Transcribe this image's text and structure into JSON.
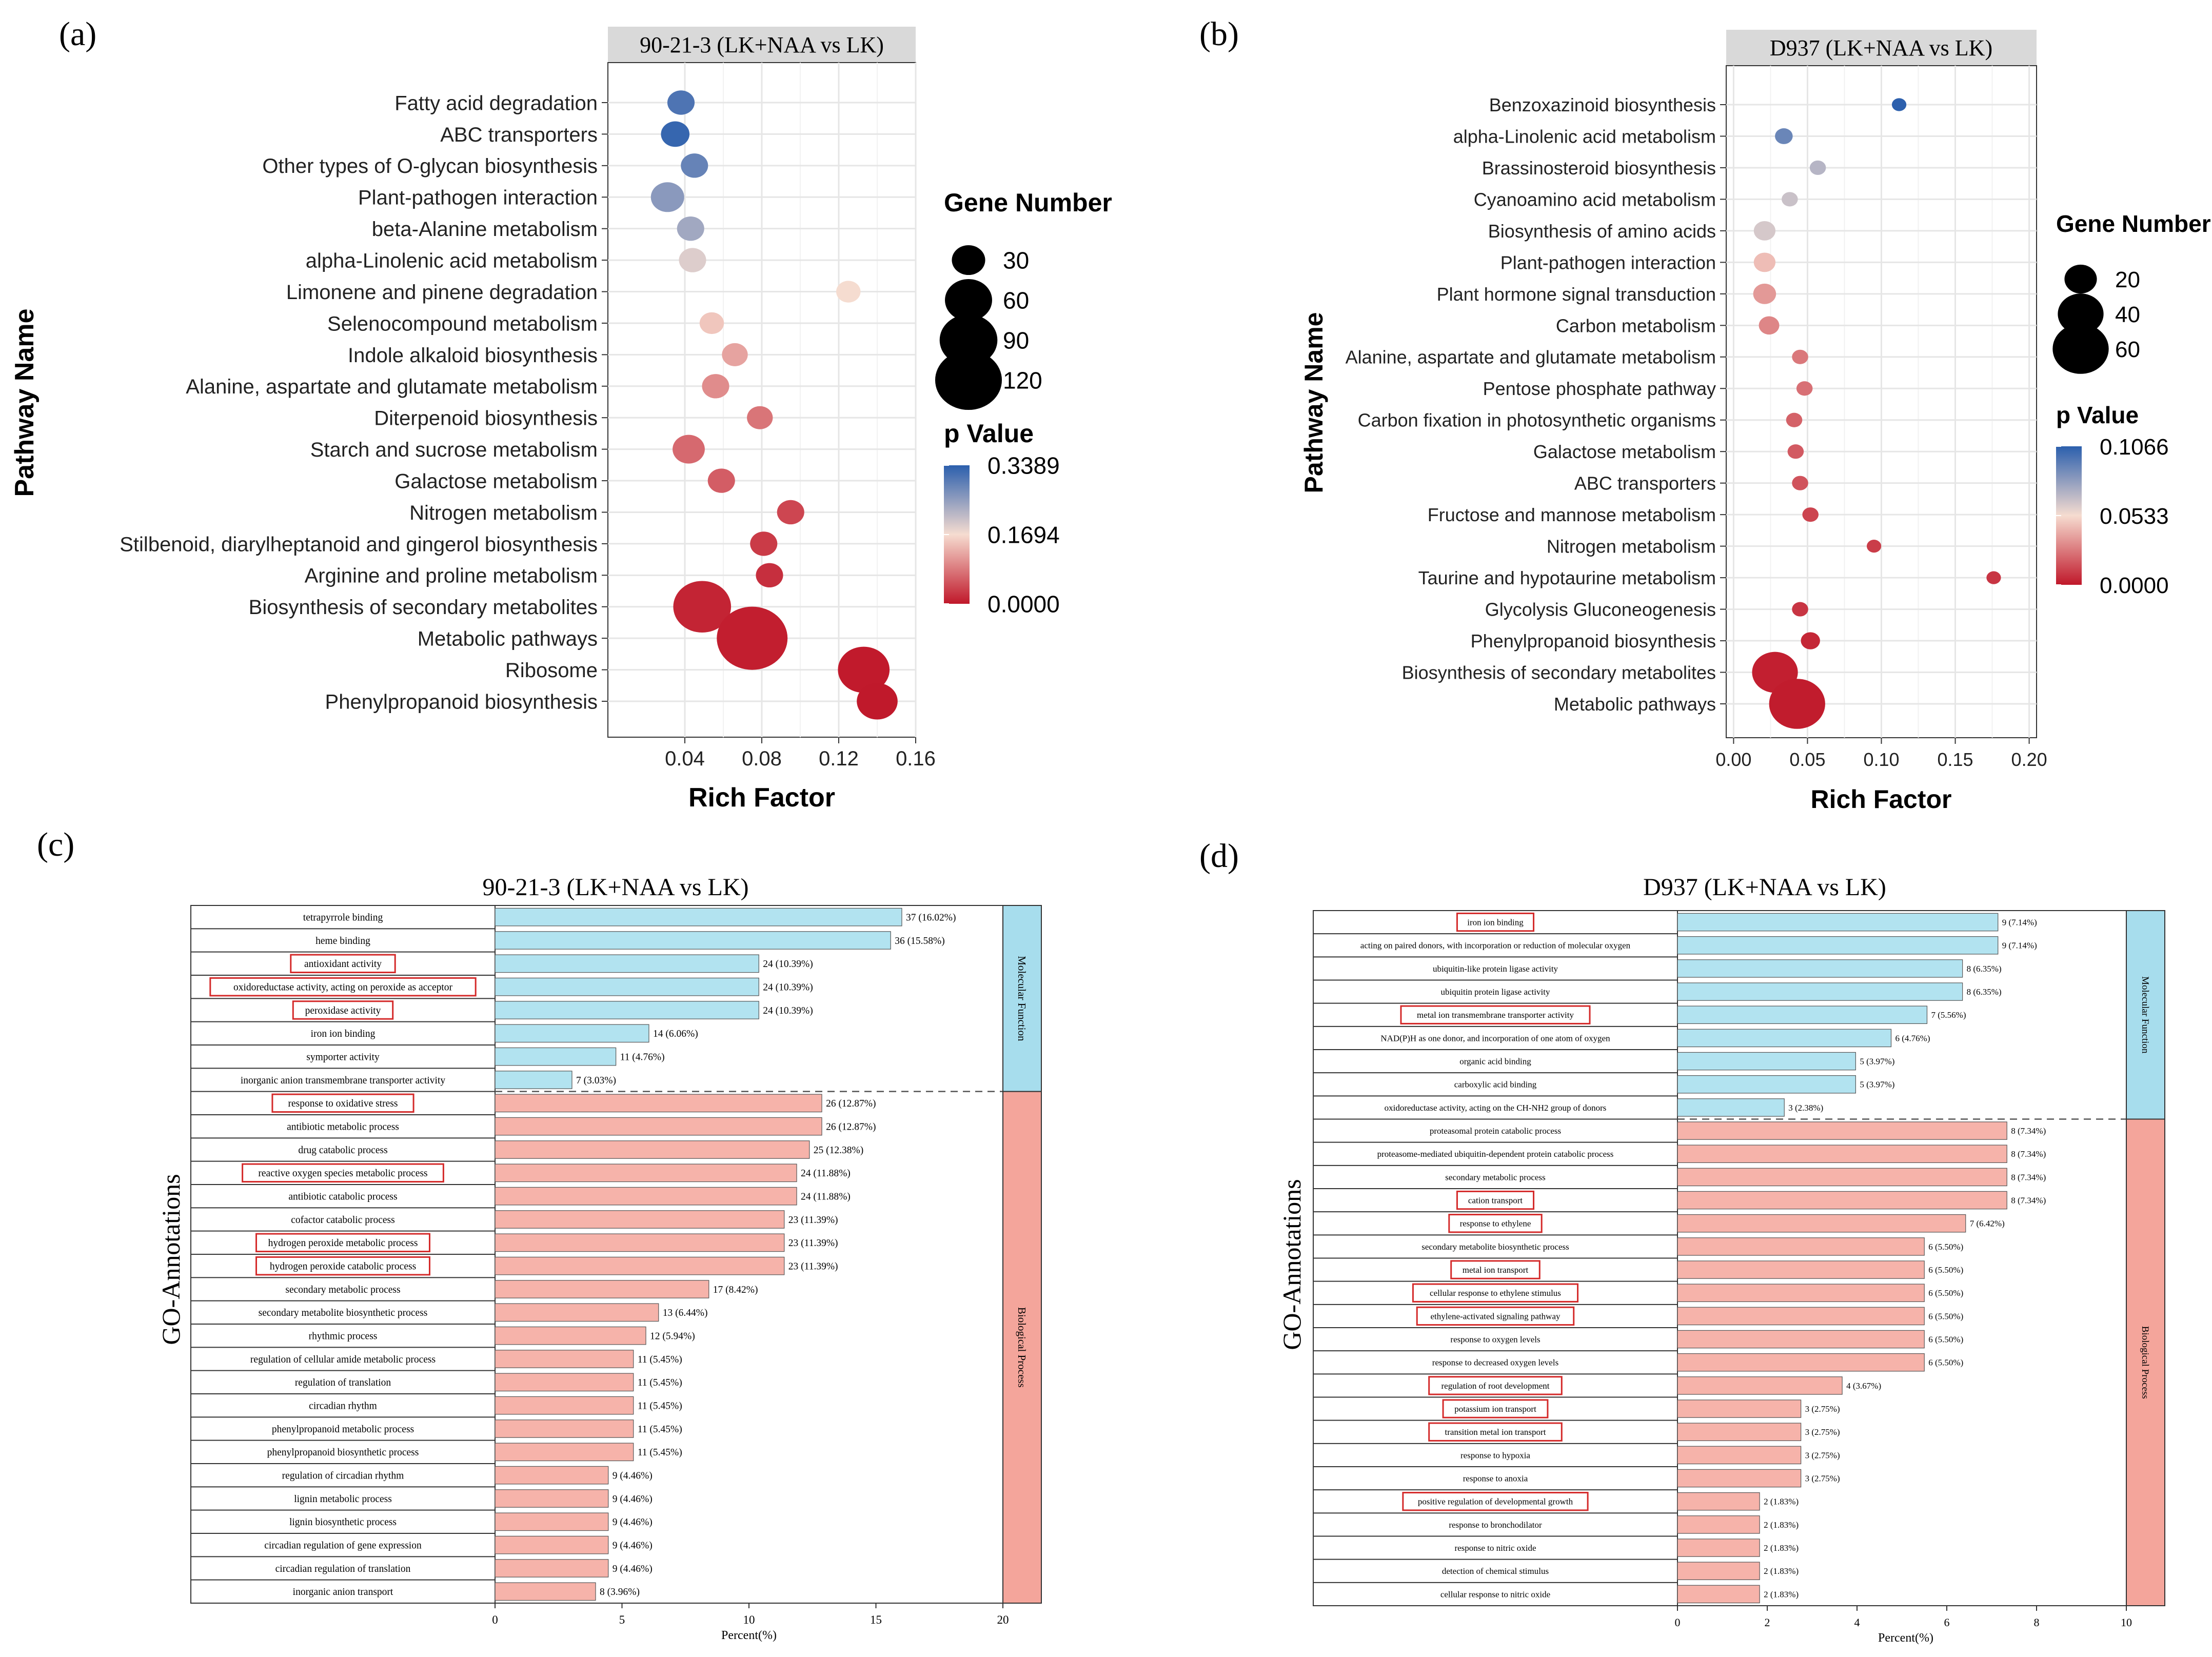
{
  "chart_data": [
    {
      "panel": "(a)",
      "type": "scatter",
      "title": "90-21-3 (LK+NAA vs LK)",
      "xlabel": "Rich Factor",
      "ylabel": "Pathway Name",
      "xlim": [
        0.0,
        0.16
      ],
      "xticks": [
        0.04,
        0.08,
        0.12,
        0.16
      ],
      "xticklabels": [
        "0.04",
        "0.08",
        "0.12",
        "0.16"
      ],
      "size_legend": {
        "title": "Gene Number",
        "values": [
          30,
          60,
          90,
          120
        ],
        "labels": [
          "30",
          "60",
          "90",
          "120"
        ]
      },
      "color_legend": {
        "title": "p Value",
        "max": 0.3389,
        "labels": [
          "0.3389",
          "0.1694",
          "0.0000"
        ]
      },
      "points": [
        {
          "pathway": "Fatty acid degradation",
          "rich_factor": 0.038,
          "genes": 20,
          "p": 0.31
        },
        {
          "pathway": "ABC transporters",
          "rich_factor": 0.035,
          "genes": 22,
          "p": 0.33
        },
        {
          "pathway": "Other types of O-glycan biosynthesis",
          "rich_factor": 0.045,
          "genes": 20,
          "p": 0.29
        },
        {
          "pathway": "Plant-pathogen interaction",
          "rich_factor": 0.031,
          "genes": 30,
          "p": 0.26
        },
        {
          "pathway": "beta-Alanine metabolism",
          "rich_factor": 0.043,
          "genes": 20,
          "p": 0.24
        },
        {
          "pathway": "alpha-Linolenic acid metabolism",
          "rich_factor": 0.044,
          "genes": 20,
          "p": 0.19
        },
        {
          "pathway": "Limonene and pinene degradation",
          "rich_factor": 0.125,
          "genes": 16,
          "p": 0.17
        },
        {
          "pathway": "Selenocompound metabolism",
          "rich_factor": 0.054,
          "genes": 16,
          "p": 0.15
        },
        {
          "pathway": "Indole alkaloid biosynthesis",
          "rich_factor": 0.066,
          "genes": 18,
          "p": 0.12
        },
        {
          "pathway": "Alanine, aspartate and glutamate metabolism",
          "rich_factor": 0.056,
          "genes": 20,
          "p": 0.1
        },
        {
          "pathway": "Diterpenoid biosynthesis",
          "rich_factor": 0.079,
          "genes": 18,
          "p": 0.08
        },
        {
          "pathway": "Starch and sucrose metabolism",
          "rich_factor": 0.042,
          "genes": 28,
          "p": 0.07
        },
        {
          "pathway": "Galactose metabolism",
          "rich_factor": 0.059,
          "genes": 20,
          "p": 0.06
        },
        {
          "pathway": "Nitrogen metabolism",
          "rich_factor": 0.095,
          "genes": 20,
          "p": 0.04
        },
        {
          "pathway": "Stilbenoid, diarylheptanoid and gingerol biosynthesis",
          "rich_factor": 0.081,
          "genes": 20,
          "p": 0.03
        },
        {
          "pathway": "Arginine and proline metabolism",
          "rich_factor": 0.084,
          "genes": 20,
          "p": 0.02
        },
        {
          "pathway": "Biosynthesis of secondary metabolites",
          "rich_factor": 0.049,
          "genes": 90,
          "p": 0.01
        },
        {
          "pathway": "Metabolic pathways",
          "rich_factor": 0.075,
          "genes": 135,
          "p": 0.005
        },
        {
          "pathway": "Ribosome",
          "rich_factor": 0.133,
          "genes": 72,
          "p": 0.002
        },
        {
          "pathway": "Phenylpropanoid biosynthesis",
          "rich_factor": 0.14,
          "genes": 45,
          "p": 0.001
        }
      ]
    },
    {
      "panel": "(b)",
      "type": "scatter",
      "title": "D937 (LK+NAA vs LK)",
      "xlabel": "Rich Factor",
      "ylabel": "Pathway Name",
      "xlim": [
        -0.005,
        0.205
      ],
      "xticks": [
        0.0,
        0.05,
        0.1,
        0.15,
        0.2
      ],
      "xticklabels": [
        "0.00",
        "0.05",
        "0.10",
        "0.15",
        "0.20"
      ],
      "size_legend": {
        "title": "Gene Number",
        "values": [
          20,
          40,
          60
        ],
        "labels": [
          "20",
          "40",
          "60"
        ]
      },
      "color_legend": {
        "title": "p Value",
        "max": 0.1066,
        "labels": [
          "0.1066",
          "0.0533",
          "0.0000"
        ]
      },
      "points": [
        {
          "pathway": "Benzoxazinoid biosynthesis",
          "rich_factor": 0.112,
          "genes": 4,
          "p": 0.106
        },
        {
          "pathway": "alpha-Linolenic acid metabolism",
          "rich_factor": 0.034,
          "genes": 6,
          "p": 0.09
        },
        {
          "pathway": "Brassinosteroid biosynthesis",
          "rich_factor": 0.057,
          "genes": 5,
          "p": 0.07
        },
        {
          "pathway": "Cyanoamino acid metabolism",
          "rich_factor": 0.038,
          "genes": 5,
          "p": 0.065
        },
        {
          "pathway": "Biosynthesis of amino acids",
          "rich_factor": 0.021,
          "genes": 9,
          "p": 0.062
        },
        {
          "pathway": "Plant-pathogen interaction",
          "rich_factor": 0.021,
          "genes": 9,
          "p": 0.045
        },
        {
          "pathway": "Plant hormone signal transduction",
          "rich_factor": 0.021,
          "genes": 10,
          "p": 0.035
        },
        {
          "pathway": "Carbon metabolism",
          "rich_factor": 0.024,
          "genes": 8,
          "p": 0.03
        },
        {
          "pathway": "Alanine, aspartate and glutamate metabolism",
          "rich_factor": 0.045,
          "genes": 5,
          "p": 0.026
        },
        {
          "pathway": "Pentose phosphate pathway",
          "rich_factor": 0.048,
          "genes": 5,
          "p": 0.024
        },
        {
          "pathway": "Carbon fixation in photosynthetic organisms",
          "rich_factor": 0.041,
          "genes": 5,
          "p": 0.02
        },
        {
          "pathway": "Galactose metabolism",
          "rich_factor": 0.042,
          "genes": 5,
          "p": 0.018
        },
        {
          "pathway": "ABC transporters",
          "rich_factor": 0.045,
          "genes": 5,
          "p": 0.016
        },
        {
          "pathway": "Fructose and mannose metabolism",
          "rich_factor": 0.052,
          "genes": 5,
          "p": 0.012
        },
        {
          "pathway": "Nitrogen metabolism",
          "rich_factor": 0.095,
          "genes": 4,
          "p": 0.01
        },
        {
          "pathway": "Taurine and hypotaurine metabolism",
          "rich_factor": 0.176,
          "genes": 4,
          "p": 0.008
        },
        {
          "pathway": "Glycolysis  Gluconeogenesis",
          "rich_factor": 0.045,
          "genes": 5,
          "p": 0.008
        },
        {
          "pathway": "Phenylpropanoid biosynthesis",
          "rich_factor": 0.052,
          "genes": 7,
          "p": 0.004
        },
        {
          "pathway": "Biosynthesis of secondary metabolites",
          "rich_factor": 0.028,
          "genes": 40,
          "p": 0.002
        },
        {
          "pathway": "Metabolic pathways",
          "rich_factor": 0.043,
          "genes": 60,
          "p": 0.001
        }
      ]
    },
    {
      "panel": "(c)",
      "type": "bar",
      "orientation": "horizontal",
      "title": "90-21-3 (LK+NAA vs LK)",
      "xlabel": "Percent(%)",
      "ylabel": "GO-Annotations",
      "xlim": [
        0,
        20
      ],
      "xticks": [
        0,
        5,
        10,
        15,
        20
      ],
      "xticklabels": [
        "0",
        "5",
        "10",
        "15",
        "20"
      ],
      "groups": [
        {
          "name": "Molecular Function",
          "color": "#b2e3f0",
          "terms": [
            "tetrapyrrole binding",
            "heme binding",
            "antioxidant activity",
            "oxidoreductase activity, acting on peroxide as acceptor",
            "peroxidase activity",
            "iron ion binding",
            "symporter activity",
            "inorganic anion transmembrane transporter activity"
          ],
          "values": [
            16.02,
            15.58,
            10.39,
            10.39,
            10.39,
            6.06,
            4.76,
            3.03
          ],
          "labels": [
            "37 (16.02%)",
            "36 (15.58%)",
            "24 (10.39%)",
            "24 (10.39%)",
            "24 (10.39%)",
            "14 (6.06%)",
            "11 (4.76%)",
            "7 (3.03%)"
          ],
          "boxed": [
            false,
            false,
            true,
            true,
            true,
            false,
            false,
            false
          ]
        },
        {
          "name": "Biological Process",
          "color": "#f6b3aa",
          "terms": [
            "response to oxidative stress",
            "antibiotic metabolic process",
            "drug catabolic process",
            "reactive oxygen species metabolic process",
            "antibiotic catabolic process",
            "cofactor catabolic process",
            "hydrogen peroxide metabolic process",
            "hydrogen peroxide catabolic process",
            "secondary metabolic process",
            "secondary metabolite biosynthetic process",
            "rhythmic process",
            "regulation of cellular amide metabolic process",
            "regulation of translation",
            "circadian rhythm",
            "phenylpropanoid metabolic process",
            "phenylpropanoid biosynthetic process",
            "regulation of circadian rhythm",
            "lignin metabolic process",
            "lignin biosynthetic process",
            "circadian regulation of gene expression",
            "circadian regulation of translation",
            "inorganic anion transport"
          ],
          "values": [
            12.87,
            12.87,
            12.38,
            11.88,
            11.88,
            11.39,
            11.39,
            11.39,
            8.42,
            6.44,
            5.94,
            5.45,
            5.45,
            5.45,
            5.45,
            5.45,
            4.46,
            4.46,
            4.46,
            4.46,
            4.46,
            3.96
          ],
          "labels": [
            "26 (12.87%)",
            "26 (12.87%)",
            "25 (12.38%)",
            "24 (11.88%)",
            "24 (11.88%)",
            "23 (11.39%)",
            "23 (11.39%)",
            "23 (11.39%)",
            "17 (8.42%)",
            "13 (6.44%)",
            "12 (5.94%)",
            "11 (5.45%)",
            "11 (5.45%)",
            "11 (5.45%)",
            "11 (5.45%)",
            "11 (5.45%)",
            "9 (4.46%)",
            "9 (4.46%)",
            "9 (4.46%)",
            "9 (4.46%)",
            "9 (4.46%)",
            "8 (3.96%)"
          ],
          "boxed": [
            true,
            false,
            false,
            true,
            false,
            false,
            true,
            true,
            false,
            false,
            false,
            false,
            false,
            false,
            false,
            false,
            false,
            false,
            false,
            false,
            false,
            false
          ]
        }
      ]
    },
    {
      "panel": "(d)",
      "type": "bar",
      "orientation": "horizontal",
      "title": "D937 (LK+NAA vs LK)",
      "xlabel": "Percent(%)",
      "ylabel": "GO-Annotations",
      "xlim": [
        0,
        10
      ],
      "xticks": [
        0,
        2,
        4,
        6,
        8,
        10
      ],
      "xticklabels": [
        "0",
        "2",
        "4",
        "6",
        "8",
        "10"
      ],
      "groups": [
        {
          "name": "Molecular Function",
          "color": "#b2e3f0",
          "terms": [
            "iron ion binding",
            "acting on paired donors, with incorporation or reduction of molecular oxygen",
            "ubiquitin-like protein ligase activity",
            "ubiquitin protein ligase activity",
            "metal ion transmembrane transporter activity",
            "NAD(P)H as one donor, and incorporation of one atom of oxygen",
            "organic acid binding",
            "carboxylic acid binding",
            "oxidoreductase activity, acting on the CH-NH2 group of donors"
          ],
          "values": [
            7.14,
            7.14,
            6.35,
            6.35,
            5.56,
            4.76,
            3.97,
            3.97,
            2.38
          ],
          "labels": [
            "9 (7.14%)",
            "9 (7.14%)",
            "8 (6.35%)",
            "8 (6.35%)",
            "7 (5.56%)",
            "6 (4.76%)",
            "5 (3.97%)",
            "5 (3.97%)",
            "3 (2.38%)"
          ],
          "boxed": [
            true,
            false,
            false,
            false,
            true,
            false,
            false,
            false,
            false
          ]
        },
        {
          "name": "Biological Process",
          "color": "#f6b3aa",
          "terms": [
            "proteasomal protein catabolic process",
            "proteasome-mediated ubiquitin-dependent protein catabolic process",
            "secondary metabolic process",
            "cation transport",
            "response to ethylene",
            "secondary metabolite biosynthetic process",
            "metal ion transport",
            "cellular response to ethylene stimulus",
            "ethylene-activated signaling pathway",
            "response to oxygen levels",
            "response to decreased oxygen levels",
            "regulation of root development",
            "potassium ion transport",
            "transition metal ion transport",
            "response to hypoxia",
            "response to anoxia",
            "positive regulation of developmental growth",
            "response to bronchodilator",
            "response to nitric oxide",
            "detection of chemical stimulus",
            "cellular response to nitric oxide"
          ],
          "values": [
            7.34,
            7.34,
            7.34,
            7.34,
            6.42,
            5.5,
            5.5,
            5.5,
            5.5,
            5.5,
            5.5,
            3.67,
            2.75,
            2.75,
            2.75,
            2.75,
            1.83,
            1.83,
            1.83,
            1.83,
            1.83
          ],
          "labels": [
            "8 (7.34%)",
            "8 (7.34%)",
            "8 (7.34%)",
            "8 (7.34%)",
            "7 (6.42%)",
            "6 (5.50%)",
            "6 (5.50%)",
            "6 (5.50%)",
            "6 (5.50%)",
            "6 (5.50%)",
            "6 (5.50%)",
            "4 (3.67%)",
            "3 (2.75%)",
            "3 (2.75%)",
            "3 (2.75%)",
            "3 (2.75%)",
            "2 (1.83%)",
            "2 (1.83%)",
            "2 (1.83%)",
            "2 (1.83%)",
            "2 (1.83%)"
          ],
          "boxed": [
            false,
            false,
            false,
            true,
            true,
            false,
            true,
            true,
            true,
            false,
            false,
            true,
            true,
            true,
            false,
            false,
            true,
            false,
            false,
            false,
            false
          ]
        }
      ]
    }
  ]
}
